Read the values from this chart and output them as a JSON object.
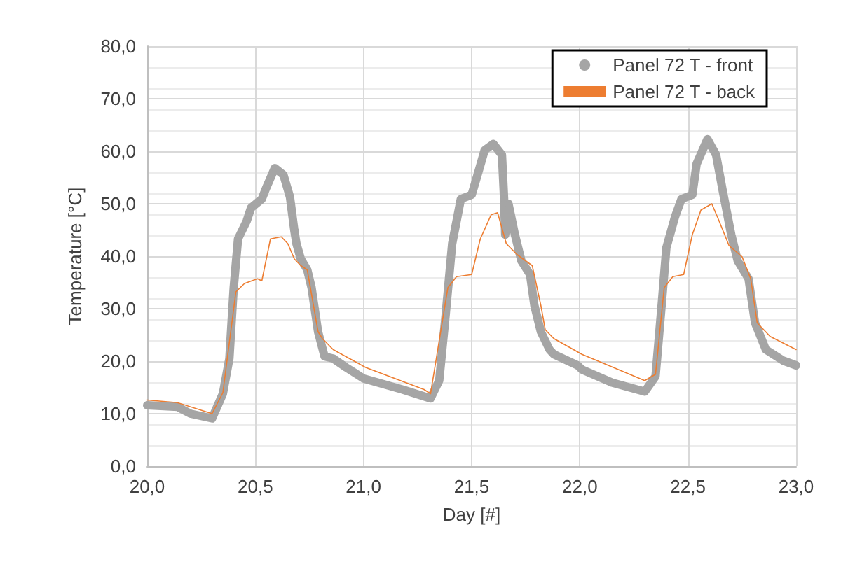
{
  "chart_data": {
    "type": "line",
    "xlabel": "Day [#]",
    "ylabel": "Temperature [°C]",
    "xlim": [
      20,
      23
    ],
    "xticks": [
      {
        "value": 20,
        "label": "20,0"
      },
      {
        "value": 20.5,
        "label": "20,5"
      },
      {
        "value": 21,
        "label": "21,0"
      },
      {
        "value": 21.5,
        "label": "21,5"
      },
      {
        "value": 22,
        "label": "22,0"
      },
      {
        "value": 22.5,
        "label": "22,5"
      },
      {
        "value": 23,
        "label": "23,0"
      }
    ],
    "ylim": [
      0,
      80
    ],
    "yticks": [
      {
        "value": 0,
        "label": "0,0"
      },
      {
        "value": 10,
        "label": "10,0"
      },
      {
        "value": 20,
        "label": "20,0"
      },
      {
        "value": 30,
        "label": "30,0"
      },
      {
        "value": 40,
        "label": "40,0"
      },
      {
        "value": 50,
        "label": "50,0"
      },
      {
        "value": 60,
        "label": "60,0"
      },
      {
        "value": 70,
        "label": "70,0"
      },
      {
        "value": 80,
        "label": "80,0"
      }
    ],
    "grid": true,
    "legend": "top right",
    "series": [
      {
        "name": "Panel 72 T - front",
        "color": "#a5a5a5",
        "marker": "circle",
        "x": [
          20.0,
          20.14,
          20.2,
          20.3,
          20.35,
          20.38,
          20.4,
          20.42,
          20.46,
          20.48,
          20.53,
          20.55,
          20.59,
          20.63,
          20.66,
          20.68,
          20.69,
          20.71,
          20.74,
          20.76,
          20.79,
          20.82,
          20.86,
          20.92,
          21.0,
          21.18,
          21.31,
          21.35,
          21.38,
          21.41,
          21.45,
          21.5,
          21.53,
          21.56,
          21.6,
          21.64,
          21.65,
          21.655,
          21.67,
          21.7,
          21.73,
          21.77,
          21.79,
          21.82,
          21.86,
          21.88,
          21.99,
          22.01,
          22.15,
          22.3,
          22.35,
          22.38,
          22.4,
          22.44,
          22.47,
          22.52,
          22.54,
          22.59,
          22.63,
          22.66,
          22.7,
          22.73,
          22.78,
          22.81,
          22.86,
          22.94,
          23.0
        ],
        "values": [
          11.6,
          11.3,
          10.0,
          9.1,
          13.8,
          20.5,
          34.0,
          43.3,
          46.7,
          49.2,
          50.9,
          53.0,
          56.8,
          55.5,
          51.3,
          45.0,
          42.4,
          39.5,
          37.4,
          34.0,
          25.6,
          20.9,
          20.5,
          18.8,
          16.7,
          14.6,
          12.9,
          16.3,
          28.9,
          42.4,
          50.9,
          51.7,
          55.9,
          60.2,
          61.4,
          59.3,
          50.9,
          44.1,
          50.0,
          44.1,
          39.1,
          36.5,
          30.6,
          25.6,
          22.2,
          21.3,
          19.2,
          18.4,
          15.9,
          14.2,
          17.1,
          31.5,
          41.6,
          47.5,
          50.9,
          51.7,
          57.6,
          62.3,
          59.3,
          52.6,
          44.1,
          39.1,
          35.7,
          27.3,
          22.2,
          20.1,
          19.2
        ]
      },
      {
        "name": "Panel 72 T - back",
        "color": "#ed7d31",
        "marker": "none",
        "x": [
          20.0,
          20.14,
          20.3,
          20.35,
          20.41,
          20.45,
          20.51,
          20.53,
          20.57,
          20.62,
          20.65,
          20.68,
          20.71,
          20.74,
          20.79,
          20.81,
          20.86,
          21.01,
          21.28,
          21.31,
          21.39,
          21.43,
          21.5,
          21.54,
          21.59,
          21.62,
          21.66,
          21.71,
          21.78,
          21.82,
          21.84,
          21.88,
          22.01,
          22.3,
          22.35,
          22.39,
          22.43,
          22.48,
          22.52,
          22.56,
          22.61,
          22.64,
          22.69,
          22.75,
          22.79,
          22.82,
          22.88,
          23.0
        ],
        "values": [
          12.6,
          12.1,
          10.0,
          14.0,
          33.2,
          34.8,
          35.7,
          35.3,
          43.3,
          43.7,
          42.4,
          39.5,
          38.2,
          37.4,
          25.6,
          24.3,
          22.2,
          18.8,
          14.6,
          13.8,
          34.0,
          36.1,
          36.5,
          43.3,
          47.9,
          48.3,
          42.4,
          40.3,
          38.2,
          30.6,
          26.0,
          24.3,
          21.3,
          16.3,
          17.5,
          34.0,
          36.1,
          36.5,
          44.1,
          48.8,
          50.0,
          47.1,
          42.0,
          39.9,
          35.7,
          27.3,
          24.7,
          22.2
        ]
      }
    ]
  }
}
